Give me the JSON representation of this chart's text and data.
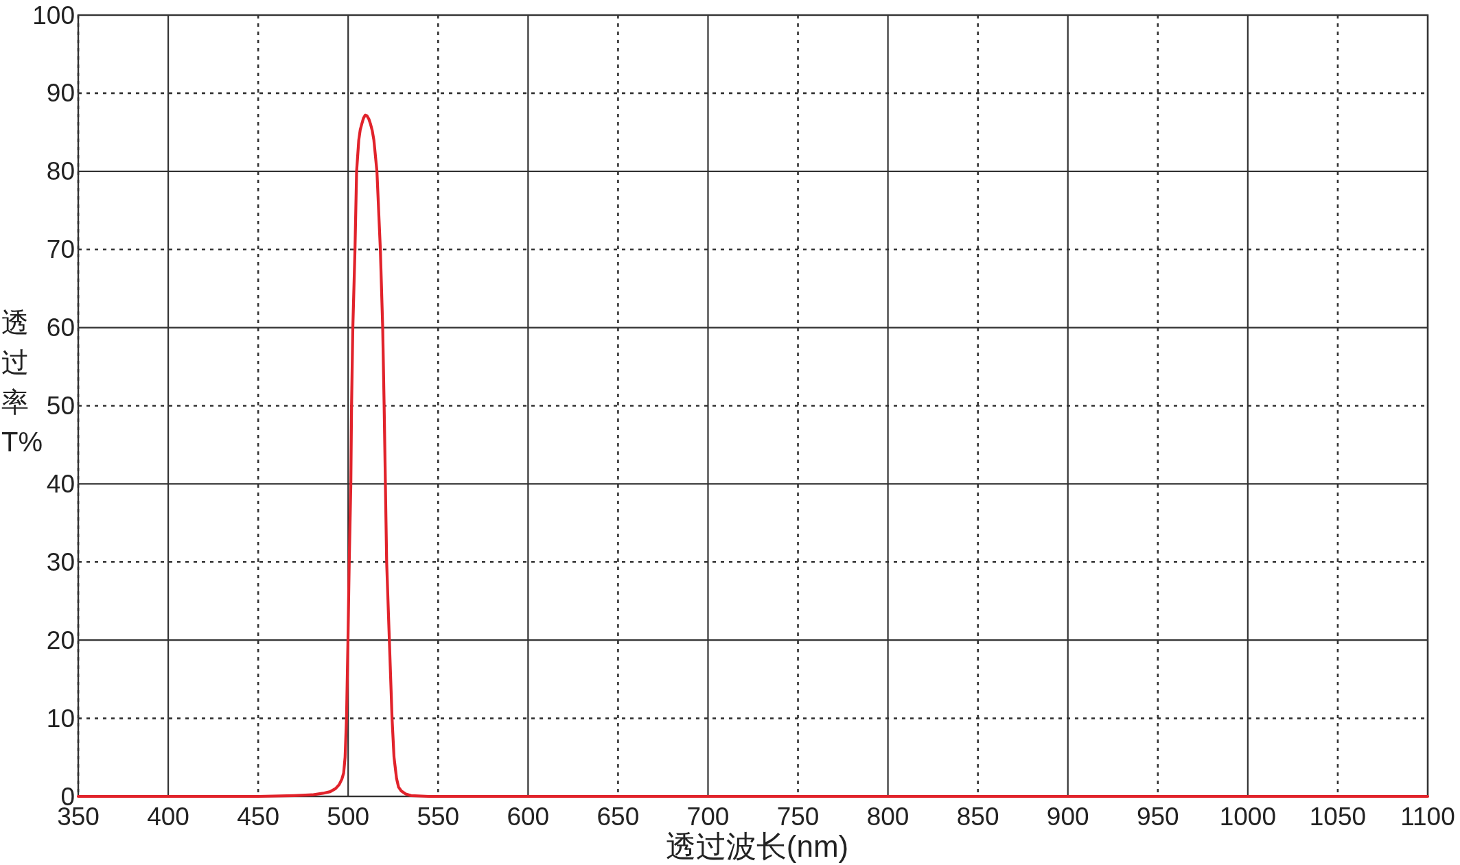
{
  "chart_data": {
    "type": "line",
    "xlabel": "透过波长(nm)",
    "ylabel": "透过率T%",
    "x": [
      350,
      400,
      450,
      470,
      480,
      486,
      490,
      493,
      495,
      496.5,
      497.5,
      498.3,
      499.1,
      499.9,
      500.6,
      501.5,
      501.9,
      502.6,
      503.8,
      504.7,
      505.9,
      506.7,
      507.5,
      508.5,
      509.5,
      510.5,
      511.5,
      512.5,
      513.4,
      514.3,
      516,
      517.9,
      519.2,
      520,
      520.7,
      521.4,
      522.9,
      524.4,
      525.5,
      526.9,
      528,
      529.5,
      532,
      535,
      545,
      600,
      1100
    ],
    "values": [
      0,
      0,
      0,
      0.1,
      0.2,
      0.4,
      0.6,
      1,
      1.5,
      2.2,
      3,
      5,
      10,
      20,
      30,
      40,
      50,
      60,
      70,
      80,
      84,
      85.3,
      86,
      86.8,
      87.2,
      87.1,
      86.7,
      86,
      85.2,
      84,
      80,
      70,
      60,
      50,
      40,
      30,
      20,
      10,
      5,
      2.3,
      1.2,
      0.7,
      0.3,
      0.1,
      0,
      0,
      0
    ],
    "color": "#e1232b",
    "xlim": [
      350,
      1100
    ],
    "ylim": [
      0,
      100
    ],
    "xticks": [
      350,
      400,
      450,
      500,
      550,
      600,
      650,
      700,
      750,
      800,
      850,
      900,
      950,
      1000,
      1050,
      1100
    ],
    "yticks": [
      0,
      10,
      20,
      30,
      40,
      50,
      60,
      70,
      80,
      90,
      100
    ],
    "grid": true
  }
}
